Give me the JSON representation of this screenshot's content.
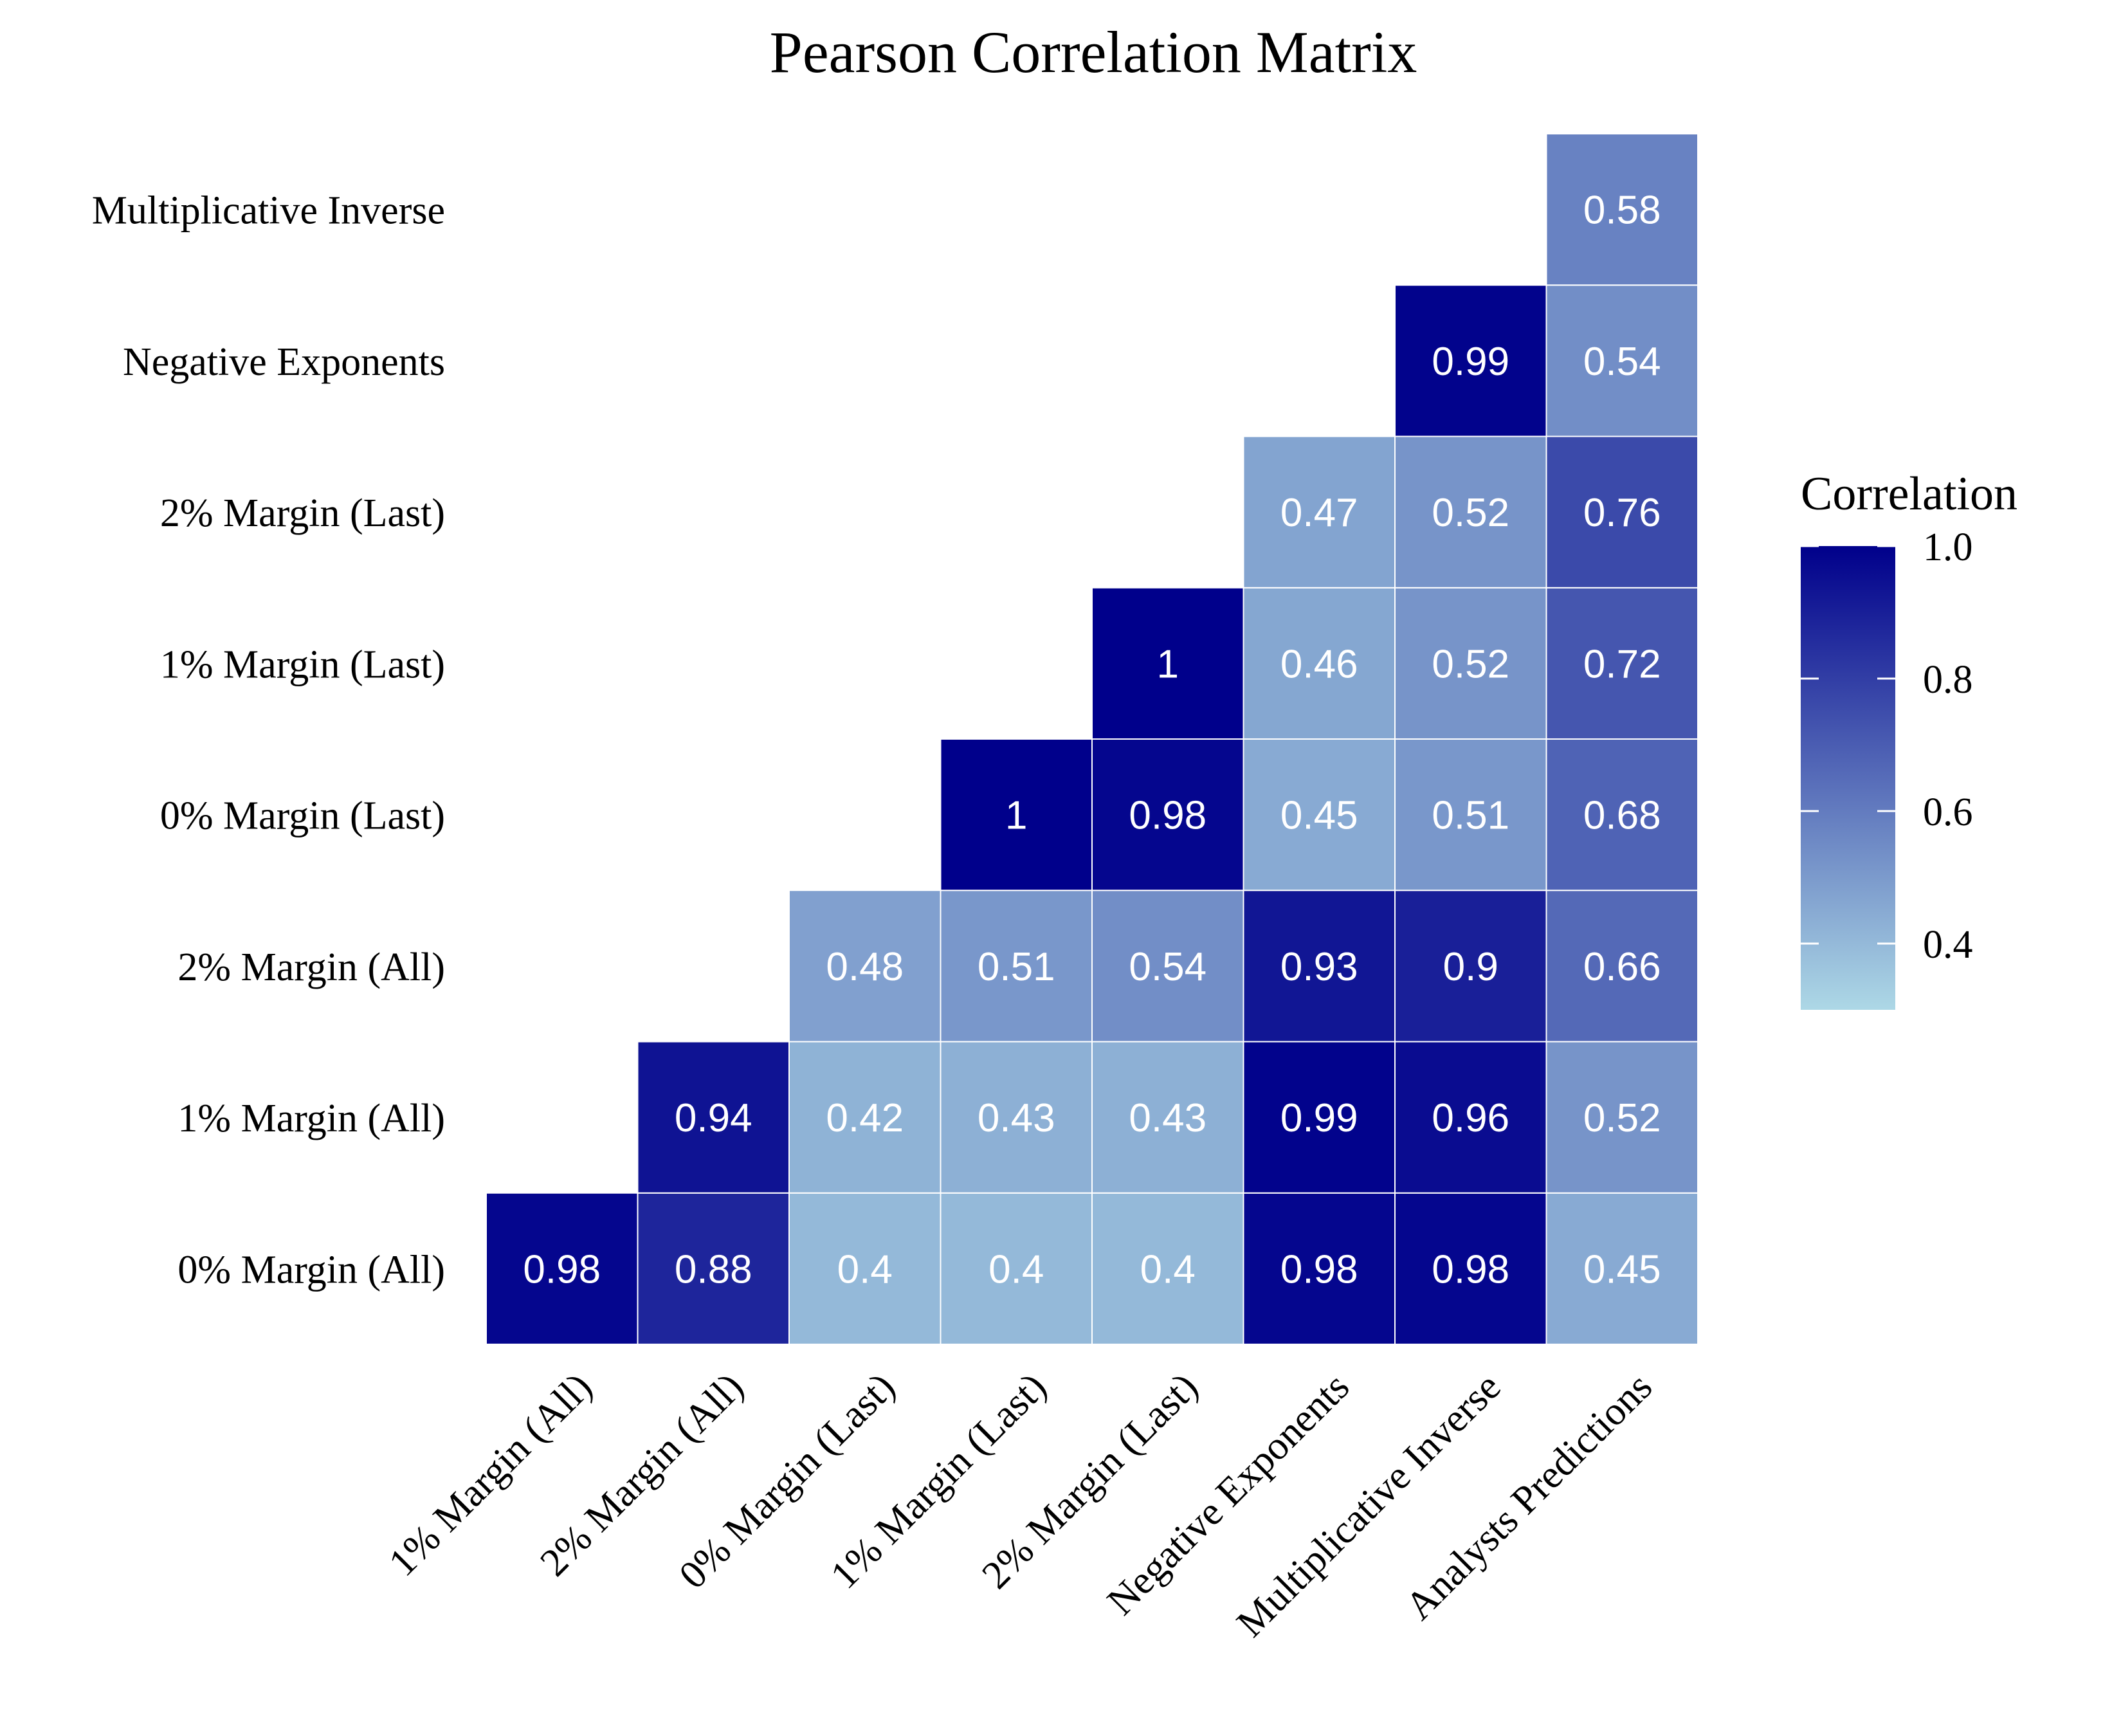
{
  "chart_data": {
    "type": "heatmap",
    "title": "Pearson Correlation Matrix",
    "legend_title": "Correlation",
    "legend_ticks": [
      "1.0",
      "0.8",
      "0.6",
      "0.4"
    ],
    "legend_range": [
      0.3,
      1.0
    ],
    "colors": {
      "low": "#add8e6",
      "high": "#00008b",
      "cell_border": "#ffffff",
      "label_text": "#ffffff"
    },
    "x_labels": [
      "1% Margin (All)",
      "2% Margin (All)",
      "0% Margin (Last)",
      "1% Margin (Last)",
      "2% Margin (Last)",
      "Negative Exponents",
      "Multiplicative Inverse",
      "Analysts Predictions"
    ],
    "y_labels": [
      "0% Margin (All)",
      "1% Margin (All)",
      "2% Margin (All)",
      "0% Margin (Last)",
      "1% Margin (Last)",
      "2% Margin (Last)",
      "Negative Exponents",
      "Multiplicative Inverse"
    ],
    "matrix": [
      [
        0.98,
        0.88,
        0.4,
        0.4,
        0.4,
        0.98,
        0.98,
        0.45
      ],
      [
        null,
        0.94,
        0.42,
        0.43,
        0.43,
        0.99,
        0.96,
        0.52
      ],
      [
        null,
        null,
        0.48,
        0.51,
        0.54,
        0.93,
        0.9,
        0.66
      ],
      [
        null,
        null,
        null,
        1,
        0.98,
        0.45,
        0.51,
        0.68
      ],
      [
        null,
        null,
        null,
        null,
        1,
        0.46,
        0.52,
        0.72
      ],
      [
        null,
        null,
        null,
        null,
        null,
        0.47,
        0.52,
        0.76
      ],
      [
        null,
        null,
        null,
        null,
        null,
        null,
        0.99,
        0.54
      ],
      [
        null,
        null,
        null,
        null,
        null,
        null,
        null,
        0.58
      ]
    ]
  }
}
